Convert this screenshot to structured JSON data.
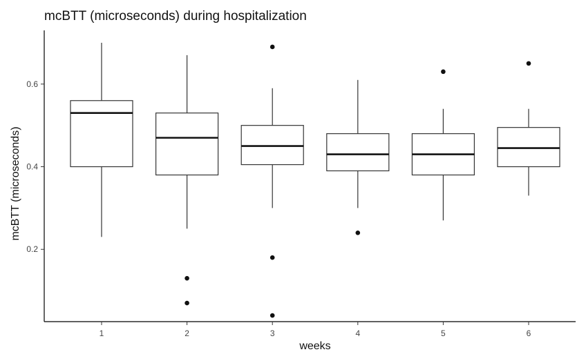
{
  "chart_data": {
    "type": "box",
    "title": "mcBTT (microseconds) during hospitalization",
    "xlabel": "weeks",
    "ylabel": "mcBTT (microseconds)",
    "categories": [
      "1",
      "2",
      "3",
      "4",
      "5",
      "6"
    ],
    "y_ticks": [
      0.2,
      0.4,
      0.6
    ],
    "y_tick_labels": [
      "0.2",
      "0.4",
      "0.6"
    ],
    "ylim": [
      0.025,
      0.73
    ],
    "grid": false,
    "boxes": [
      {
        "category": "1",
        "min": 0.23,
        "q1": 0.4,
        "median": 0.53,
        "q3": 0.56,
        "max": 0.7,
        "outliers": []
      },
      {
        "category": "2",
        "min": 0.25,
        "q1": 0.38,
        "median": 0.47,
        "q3": 0.53,
        "max": 0.67,
        "outliers": [
          0.13,
          0.07
        ]
      },
      {
        "category": "3",
        "min": 0.3,
        "q1": 0.405,
        "median": 0.45,
        "q3": 0.5,
        "max": 0.59,
        "outliers": [
          0.69,
          0.18,
          0.04
        ]
      },
      {
        "category": "4",
        "min": 0.3,
        "q1": 0.39,
        "median": 0.43,
        "q3": 0.48,
        "max": 0.61,
        "outliers": [
          0.24
        ]
      },
      {
        "category": "5",
        "min": 0.27,
        "q1": 0.38,
        "median": 0.43,
        "q3": 0.48,
        "max": 0.54,
        "outliers": [
          0.63
        ]
      },
      {
        "category": "6",
        "min": 0.33,
        "q1": 0.4,
        "median": 0.445,
        "q3": 0.495,
        "max": 0.54,
        "outliers": [
          0.65
        ]
      }
    ]
  }
}
